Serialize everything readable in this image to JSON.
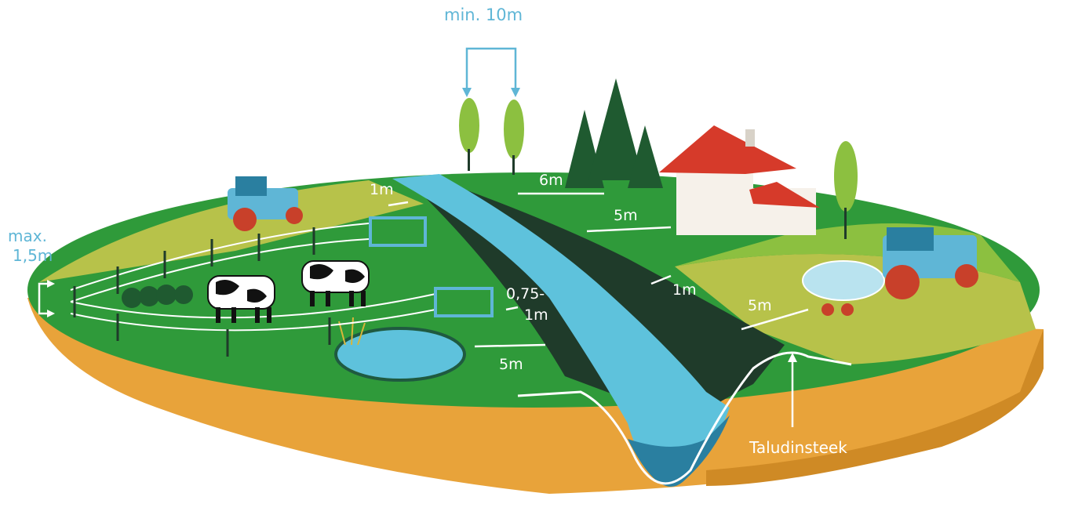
{
  "colors": {
    "soil": "#e8a33a",
    "soil_dark": "#cf8a25",
    "grass": "#2f9a3a",
    "grass_light": "#8cc040",
    "field_yellow": "#b7c24a",
    "water": "#5ec2dc",
    "water_dark": "#2a7fa0",
    "bank_dark": "#1f3b2a",
    "label_blue": "#5fb6d6",
    "label_white": "#ffffff",
    "tractor_blue": "#5fb6d6",
    "roof_red": "#d63a2a"
  },
  "labels": {
    "min_10m": "min. 10m",
    "max_height": "max.",
    "max_height_value": "1,5m",
    "buffer_1m_left": "1m",
    "buffer_6m": "6m",
    "buffer_5m_house": "5m",
    "buffer_075": "0,75-",
    "buffer_075_unit": "1m",
    "buffer_1m_right": "1m",
    "buffer_5m_right": "5m",
    "buffer_5m_pond": "5m",
    "taludinsteek": "Taludinsteek"
  },
  "icons": [
    "tractor-icon",
    "tractor-with-tank-icon",
    "house-icon",
    "cow-icon",
    "pine-tree-icon",
    "poplar-tree-icon",
    "fence-gate-icon",
    "pond-icon",
    "reed-icon"
  ]
}
